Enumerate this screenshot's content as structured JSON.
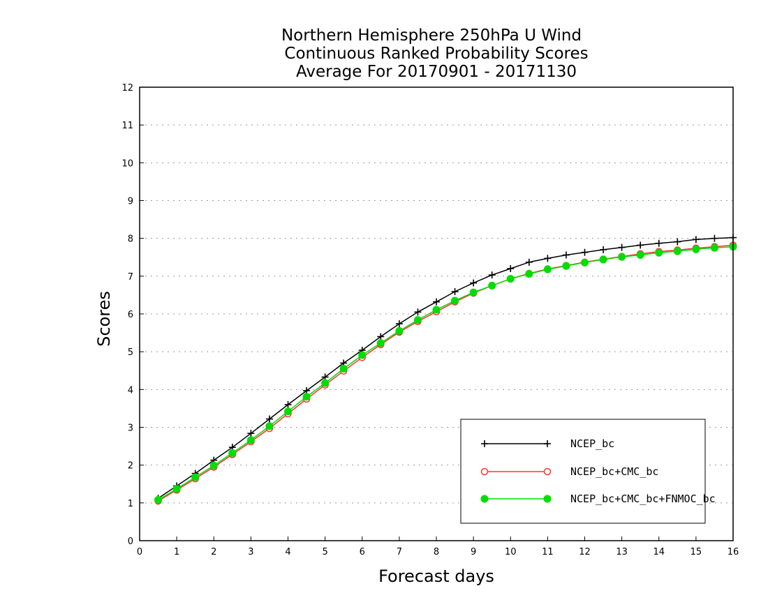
{
  "chart_data": {
    "type": "line",
    "title_lines": [
      "Northern Hemisphere 250hPa U Wind",
      "Continuous Ranked Probability Scores",
      "Average For 20170901 - 20171130"
    ],
    "xlabel": "Forecast days",
    "ylabel": "Scores",
    "xlim": [
      0,
      16
    ],
    "ylim": [
      0,
      12
    ],
    "xticks": [
      "0",
      "1",
      "2",
      "3",
      "4",
      "5",
      "6",
      "7",
      "8",
      "9",
      "10",
      "11",
      "12",
      "13",
      "14",
      "15",
      "16"
    ],
    "yticks": [
      "0",
      "1",
      "2",
      "3",
      "4",
      "5",
      "6",
      "7",
      "8",
      "9",
      "10",
      "11",
      "12"
    ],
    "grid": "horizontal dotted",
    "legend_position": "bottom-right",
    "x": [
      0.5,
      1,
      1.5,
      2,
      2.5,
      3,
      3.5,
      4,
      4.5,
      5,
      5.5,
      6,
      6.5,
      7,
      7.5,
      8,
      8.5,
      9,
      9.5,
      10,
      10.5,
      11,
      11.5,
      12,
      12.5,
      13,
      13.5,
      14,
      14.5,
      15,
      15.5,
      16
    ],
    "series": [
      {
        "name": "NCEP_bc",
        "color": "#000000",
        "marker": "plus",
        "values": [
          1.12,
          1.45,
          1.78,
          2.13,
          2.47,
          2.84,
          3.22,
          3.6,
          3.97,
          4.33,
          4.7,
          5.04,
          5.4,
          5.74,
          6.05,
          6.32,
          6.59,
          6.82,
          7.03,
          7.2,
          7.37,
          7.47,
          7.56,
          7.63,
          7.7,
          7.76,
          7.82,
          7.87,
          7.91,
          7.97,
          8.0,
          8.02
        ]
      },
      {
        "name": "NCEP_bc+CMC_bc",
        "color": "#ff3333",
        "marker": "open-circle",
        "values": [
          1.05,
          1.34,
          1.64,
          1.95,
          2.28,
          2.62,
          2.97,
          3.36,
          3.75,
          4.12,
          4.49,
          4.85,
          5.19,
          5.52,
          5.8,
          6.06,
          6.32,
          6.55,
          6.75,
          6.93,
          7.07,
          7.19,
          7.28,
          7.37,
          7.45,
          7.52,
          7.59,
          7.65,
          7.69,
          7.74,
          7.78,
          7.82
        ]
      },
      {
        "name": "NCEP_bc+CMC_bc+FNMOC_bc",
        "color": "#00dd00",
        "marker": "filled-circle",
        "values": [
          1.08,
          1.37,
          1.68,
          1.99,
          2.32,
          2.66,
          3.03,
          3.42,
          3.81,
          4.17,
          4.55,
          4.91,
          5.23,
          5.55,
          5.84,
          6.11,
          6.35,
          6.57,
          6.75,
          6.93,
          7.06,
          7.18,
          7.27,
          7.36,
          7.44,
          7.51,
          7.56,
          7.62,
          7.66,
          7.71,
          7.75,
          7.78
        ]
      }
    ]
  }
}
